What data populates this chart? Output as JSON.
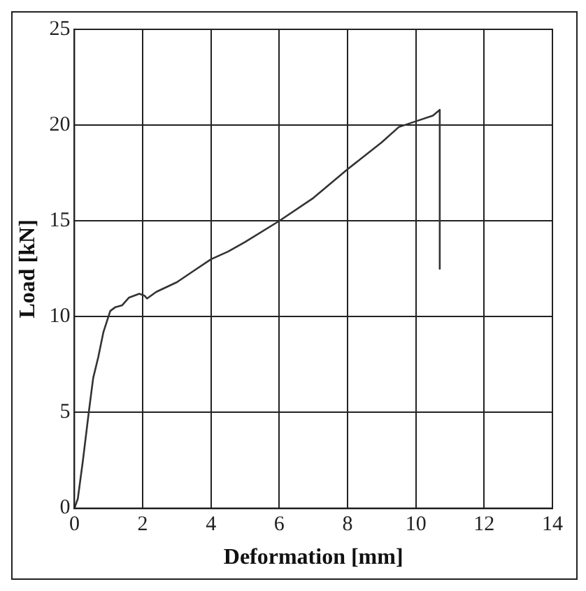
{
  "chart_data": {
    "type": "line",
    "xlabel": "Deformation [mm]",
    "ylabel": "Load [kN]",
    "x": [
      0,
      0.1,
      0.25,
      0.42,
      0.55,
      0.7,
      0.85,
      1.05,
      1.2,
      1.4,
      1.6,
      1.9,
      2.05,
      2.13,
      2.4,
      3,
      3.5,
      4,
      4.5,
      5,
      6,
      7,
      8,
      9,
      9.5,
      10,
      10.5,
      10.7,
      10.7
    ],
    "series": [
      {
        "color": "#333333",
        "values": [
          0,
          0.5,
          2.5,
          5,
          6.8,
          7.9,
          9.2,
          10.3,
          10.5,
          10.6,
          11,
          11.2,
          11.1,
          10.95,
          11.3,
          11.8,
          12.4,
          13,
          13.4,
          13.9,
          15,
          16.2,
          17.7,
          19.1,
          19.9,
          20.2,
          20.5,
          20.8,
          12.5
        ]
      }
    ],
    "xlim": [
      0,
      14
    ],
    "xticks": [
      0,
      2,
      4,
      6,
      8,
      10,
      12,
      14
    ],
    "ylim": [
      0,
      25
    ],
    "yticks": [
      0,
      5,
      10,
      15,
      20,
      25
    ],
    "grid": true,
    "legend": false,
    "marker": "none",
    "line_style": "solid"
  }
}
